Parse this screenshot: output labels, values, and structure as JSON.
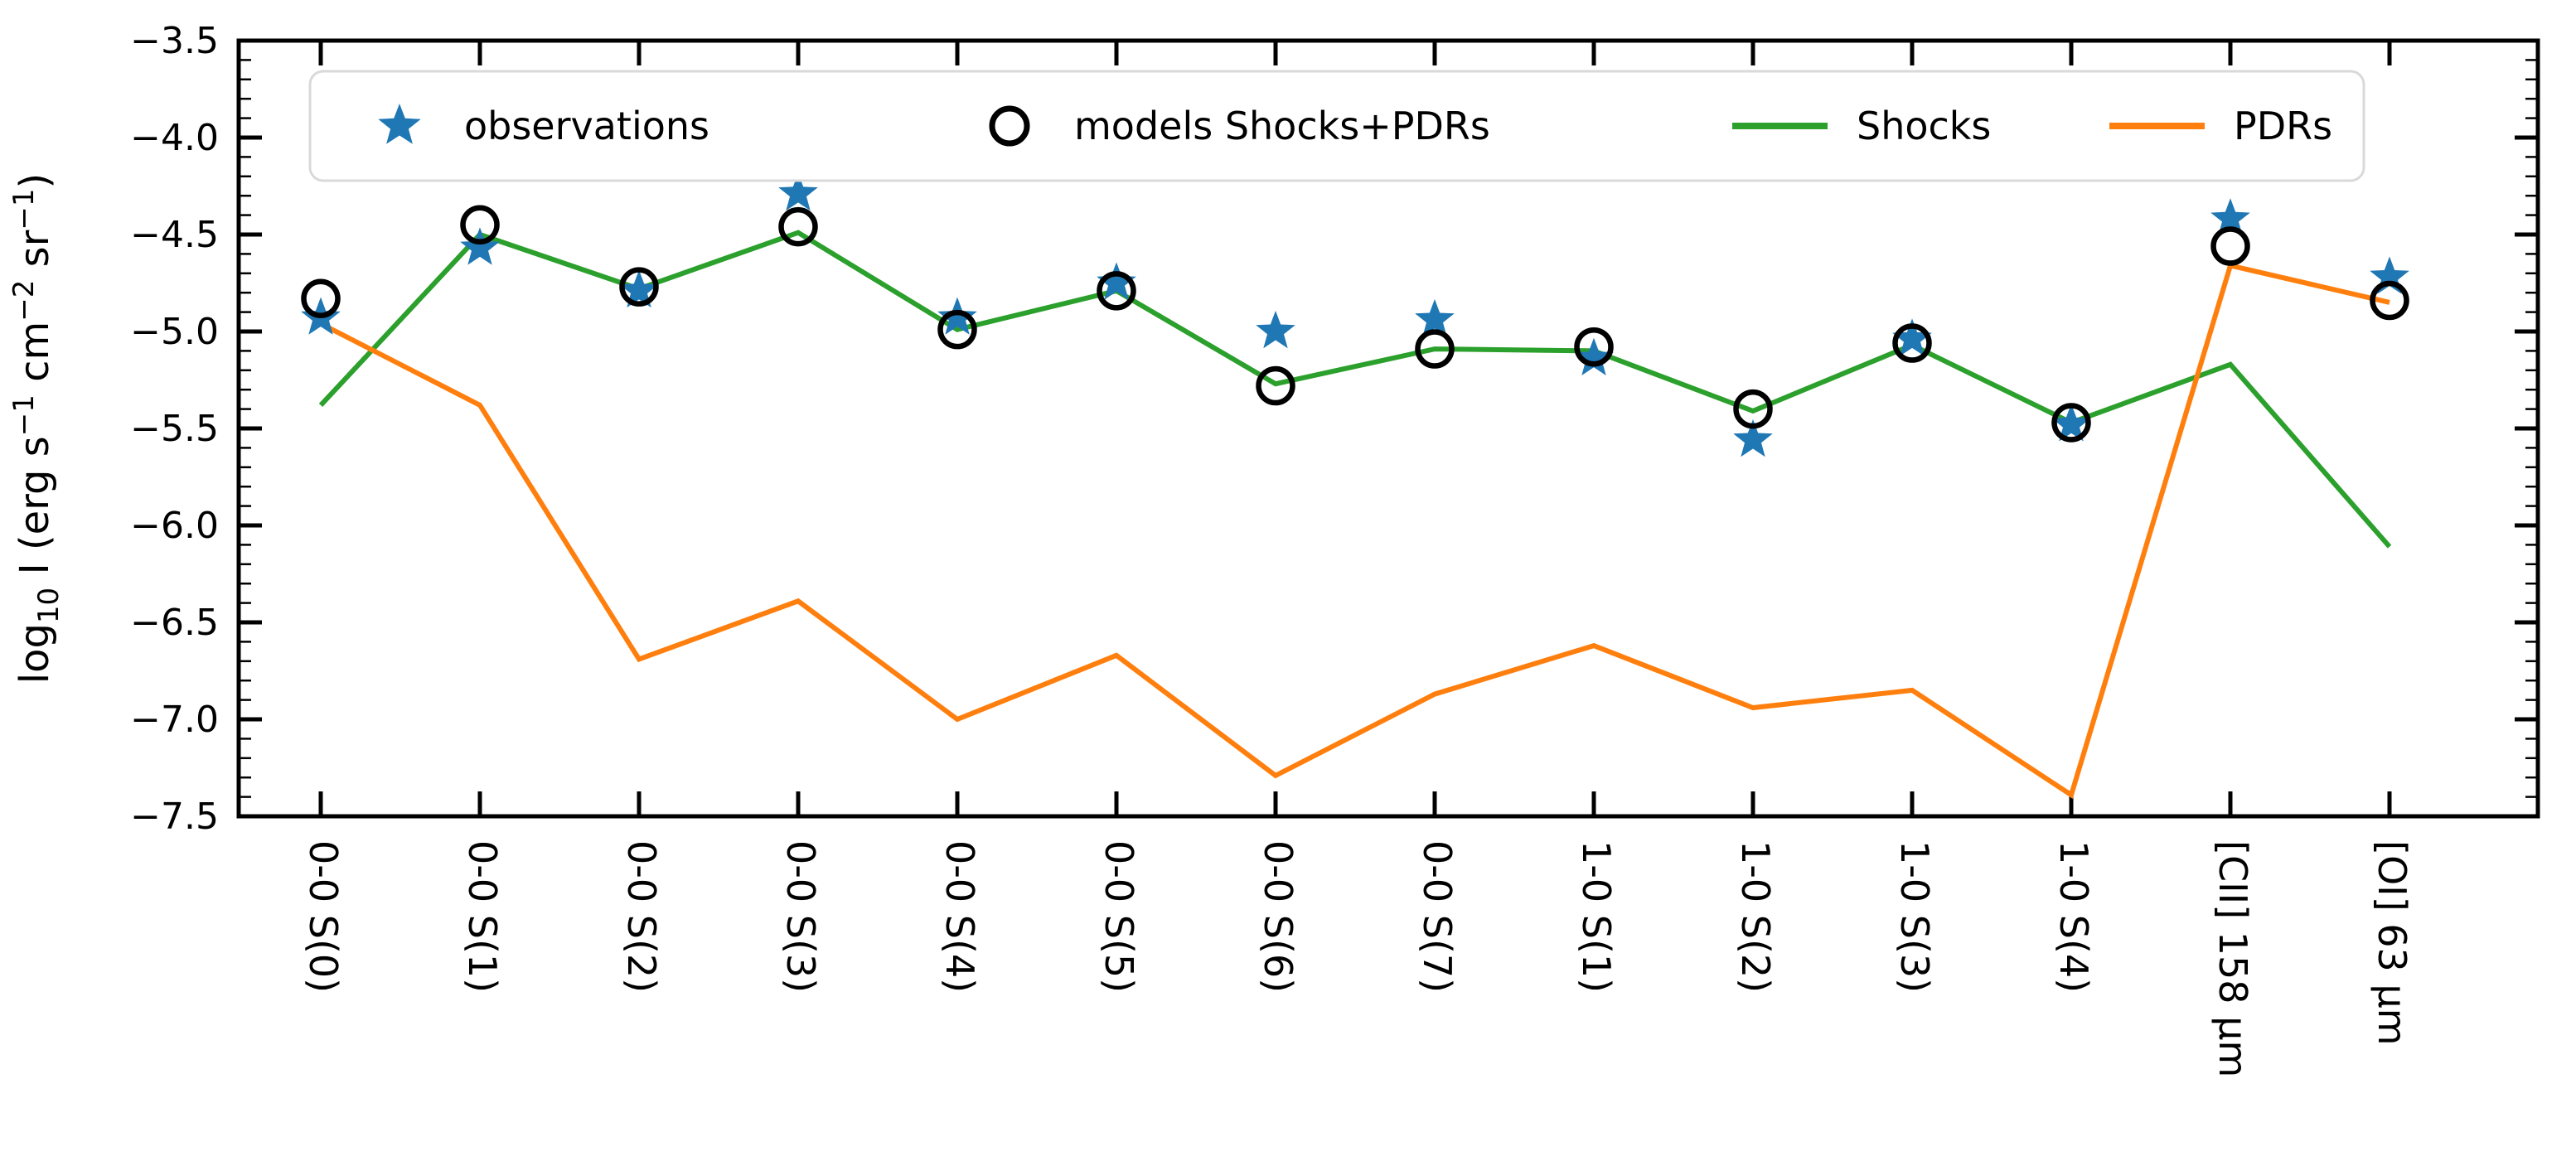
{
  "chart_data": {
    "type": "line",
    "title": "",
    "xlabel": "",
    "ylabel": "log10 I (erg s-1 cm-2 sr-1)",
    "ylabel_parts": [
      {
        "t": "log"
      },
      {
        "t": "10",
        "script": "sub"
      },
      {
        "t": " I (erg s"
      },
      {
        "t": "−1",
        "script": "sup"
      },
      {
        "t": " cm"
      },
      {
        "t": "−2",
        "script": "sup"
      },
      {
        "t": " sr"
      },
      {
        "t": "−1",
        "script": "sup"
      },
      {
        "t": ")"
      }
    ],
    "categories": [
      "0-0 S(0)",
      "0-0 S(1)",
      "0-0 S(2)",
      "0-0 S(3)",
      "0-0 S(4)",
      "0-0 S(5)",
      "0-0 S(6)",
      "0-0 S(7)",
      "1-0 S(1)",
      "1-0 S(2)",
      "1-0 S(3)",
      "1-0 S(4)",
      "[CII] 158 μm",
      "[OI] 63 μm"
    ],
    "ylim": [
      -7.5,
      -3.5
    ],
    "ytick_major_step": 0.5,
    "ytick_minor_step": 0.1,
    "ytick_labels": [
      "−3.5",
      "−4.0",
      "−4.5",
      "−5.0",
      "−5.5",
      "−6.0",
      "−6.5",
      "−7.0",
      "−7.5"
    ],
    "grid": false,
    "legend_position": "top inside",
    "series": [
      {
        "name": "observations",
        "plot_type": "scatter",
        "marker": "star",
        "color": "#1f77b4",
        "values": [
          -4.93,
          -4.57,
          -4.79,
          -4.29,
          -4.93,
          -4.75,
          -5.0,
          -4.94,
          -5.14,
          -5.56,
          -5.04,
          -5.48,
          -4.42,
          -4.72
        ]
      },
      {
        "name": "models Shocks+PDRs",
        "plot_type": "scatter",
        "marker": "open-circle",
        "color": "#000000",
        "values": [
          -4.83,
          -4.45,
          -4.77,
          -4.46,
          -4.99,
          -4.79,
          -5.28,
          -5.09,
          -5.08,
          -5.4,
          -5.06,
          -5.47,
          -4.56,
          -4.84
        ]
      },
      {
        "name": "Shocks",
        "plot_type": "line",
        "marker": "none",
        "color": "#2ca02c",
        "values": [
          -5.38,
          -4.5,
          -4.78,
          -4.49,
          -4.99,
          -4.79,
          -5.27,
          -5.09,
          -5.1,
          -5.41,
          -5.07,
          -5.47,
          -5.17,
          -6.11
        ]
      },
      {
        "name": "PDRs",
        "plot_type": "line",
        "marker": "none",
        "color": "#ff7f0e",
        "values": [
          -4.96,
          -5.38,
          -6.69,
          -6.39,
          -7.0,
          -6.67,
          -7.29,
          -6.87,
          -6.62,
          -6.94,
          -6.85,
          -7.39,
          -4.66,
          -4.85
        ]
      }
    ],
    "legend": {
      "items": [
        {
          "label": "observations",
          "marker": "star",
          "color": "#1f77b4"
        },
        {
          "label": "models Shocks+PDRs",
          "marker": "open-circle",
          "color": "#000000"
        },
        {
          "label": "Shocks",
          "marker": "line",
          "color": "#2ca02c"
        },
        {
          "label": "PDRs",
          "marker": "line",
          "color": "#ff7f0e"
        }
      ]
    }
  }
}
